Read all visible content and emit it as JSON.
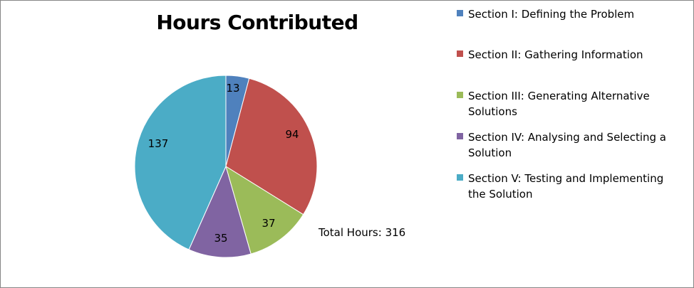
{
  "chart_data": {
    "type": "pie",
    "title": "Hours Contributed",
    "slices": [
      {
        "name": "Section I: Defining the Problem",
        "value": 13,
        "label": "13",
        "color": "#4F81BD"
      },
      {
        "name": "Section II: Gathering Information",
        "value": 94,
        "label": "94",
        "color": "#C0504D"
      },
      {
        "name": "Section III: Generating Alternative Solutions",
        "value": 37,
        "label": "37",
        "color": "#9BBB59"
      },
      {
        "name": "Section IV: Analysing and Selecting a Solution",
        "value": 35,
        "label": "35",
        "color": "#8064A2"
      },
      {
        "name": "Section V: Testing and Implementing the Solution",
        "value": 137,
        "label": "137",
        "color": "#4BACC6"
      }
    ],
    "legend_placement": "right",
    "annotation": "Total Hours: 316"
  }
}
